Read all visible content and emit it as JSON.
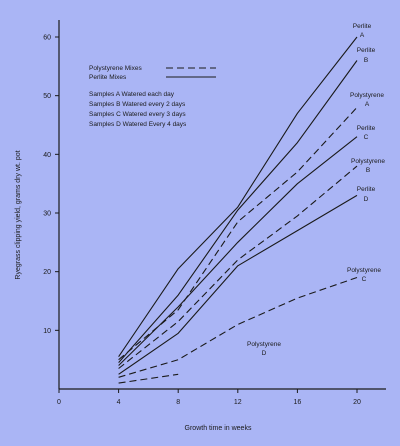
{
  "colors": {
    "background": "#aab5f5",
    "ink": "#1a1a1a"
  },
  "chart_data": {
    "type": "line",
    "xlabel": "Growth time in weeks",
    "ylabel": "Ryegrass clipping yield, grams dry wt. pot",
    "xlim": [
      0,
      22
    ],
    "ylim": [
      0,
      62
    ],
    "xticks": [
      0,
      4,
      8,
      12,
      16,
      20
    ],
    "yticks": [
      10,
      20,
      30,
      40,
      50,
      60
    ],
    "legend": {
      "placement": "top-left",
      "line_entries": [
        {
          "label": "Polystyrene Mixes",
          "style": "dashed"
        },
        {
          "label": "Perlite Mixes",
          "style": "solid"
        }
      ],
      "sample_notes": [
        "Samples A Watered each day",
        "Samples B Watered every 2 days",
        "Samples C Watered every 3 days",
        "Samples D Watered Every 4 days"
      ]
    },
    "series": [
      {
        "id": "perlite-a",
        "material": "Perlite",
        "letter": "A",
        "style": "solid",
        "x": [
          4,
          8,
          12,
          16,
          20
        ],
        "y": [
          5.5,
          20.5,
          31,
          47,
          60
        ]
      },
      {
        "id": "perlite-b",
        "material": "Perlite",
        "letter": "B",
        "style": "solid",
        "x": [
          4,
          8,
          12,
          16,
          20
        ],
        "y": [
          4.5,
          16,
          30.5,
          42,
          56
        ]
      },
      {
        "id": "perlite-c",
        "material": "Perlite",
        "letter": "C",
        "style": "solid",
        "x": [
          4,
          8,
          12,
          16,
          20
        ],
        "y": [
          4,
          14,
          25,
          35,
          43
        ]
      },
      {
        "id": "perlite-d",
        "material": "Perlite",
        "letter": "D",
        "style": "solid",
        "x": [
          4,
          8,
          12,
          16,
          20
        ],
        "y": [
          2.5,
          9.5,
          21,
          27,
          33
        ]
      },
      {
        "id": "polystyrene-a",
        "material": "Polystyrene",
        "letter": "A",
        "style": "dashed",
        "x": [
          4,
          8,
          12,
          16,
          20
        ],
        "y": [
          5,
          13.5,
          28.5,
          37,
          48
        ]
      },
      {
        "id": "polystyrene-b",
        "material": "Polystyrene",
        "letter": "B",
        "style": "dashed",
        "x": [
          4,
          8,
          12,
          16,
          20
        ],
        "y": [
          3.5,
          11.5,
          22,
          29.5,
          38
        ]
      },
      {
        "id": "polystyrene-c",
        "material": "Polystyrene",
        "letter": "C",
        "style": "dashed",
        "x": [
          4,
          8,
          12,
          16,
          20
        ],
        "y": [
          2,
          5,
          11,
          15.5,
          19
        ]
      },
      {
        "id": "polystyrene-d",
        "material": "Polystyrene",
        "letter": "D",
        "style": "dashed",
        "x": [
          4,
          8,
          12,
          16,
          20
        ],
        "y": [
          1,
          2.5,
          null,
          null,
          null
        ]
      }
    ]
  }
}
